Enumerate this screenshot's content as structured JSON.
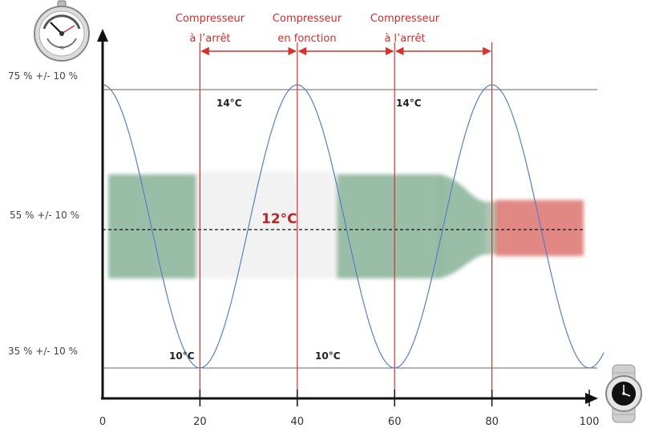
{
  "colors": {
    "sine": "#5a7fc0",
    "marker": "#d9302c",
    "axis": "#111111",
    "guide": "#666666",
    "bottle_glass": "#6fa382",
    "bottle_label": "#eeeeee",
    "capsule": "#d8635f",
    "phase_text": "#d62a2a"
  },
  "icons": {
    "top_left": "hygrometer-icon",
    "bottom_right": "wristwatch-icon",
    "background": "wine-bottle-illustration"
  },
  "humidity_levels": [
    {
      "label": "75 % +/- 10 %",
      "value": 75
    },
    {
      "label": "55 % +/- 10 %",
      "value": 55
    },
    {
      "label": "35 % +/- 10 %",
      "value": 35
    }
  ],
  "x_ticks": [
    "0",
    "20",
    "40",
    "60",
    "80",
    "100"
  ],
  "x_tick_values": [
    0,
    20,
    40,
    60,
    80,
    100
  ],
  "phases": [
    {
      "line1": "Compresseur",
      "line2": "à l’arrêt",
      "from": 20,
      "to": 40
    },
    {
      "line1": "Compresseur",
      "line2": "en fonction",
      "from": 40,
      "to": 60
    },
    {
      "line1": "Compresseur",
      "line2": "à l’arrêt",
      "from": 60,
      "to": 80
    }
  ],
  "marker_times": [
    20,
    40,
    60,
    80
  ],
  "temperature_labels": [
    {
      "text": "14°C",
      "t": 40,
      "level": "max"
    },
    {
      "text": "14°C",
      "t": 80,
      "level": "max"
    },
    {
      "text": "10°C",
      "t": 20,
      "level": "min"
    },
    {
      "text": "10°C",
      "t": 60,
      "level": "min"
    }
  ],
  "center_label": "12°C",
  "curve": {
    "period": 40,
    "peak_t": 40,
    "t_start": 0,
    "t_end": 103
  }
}
